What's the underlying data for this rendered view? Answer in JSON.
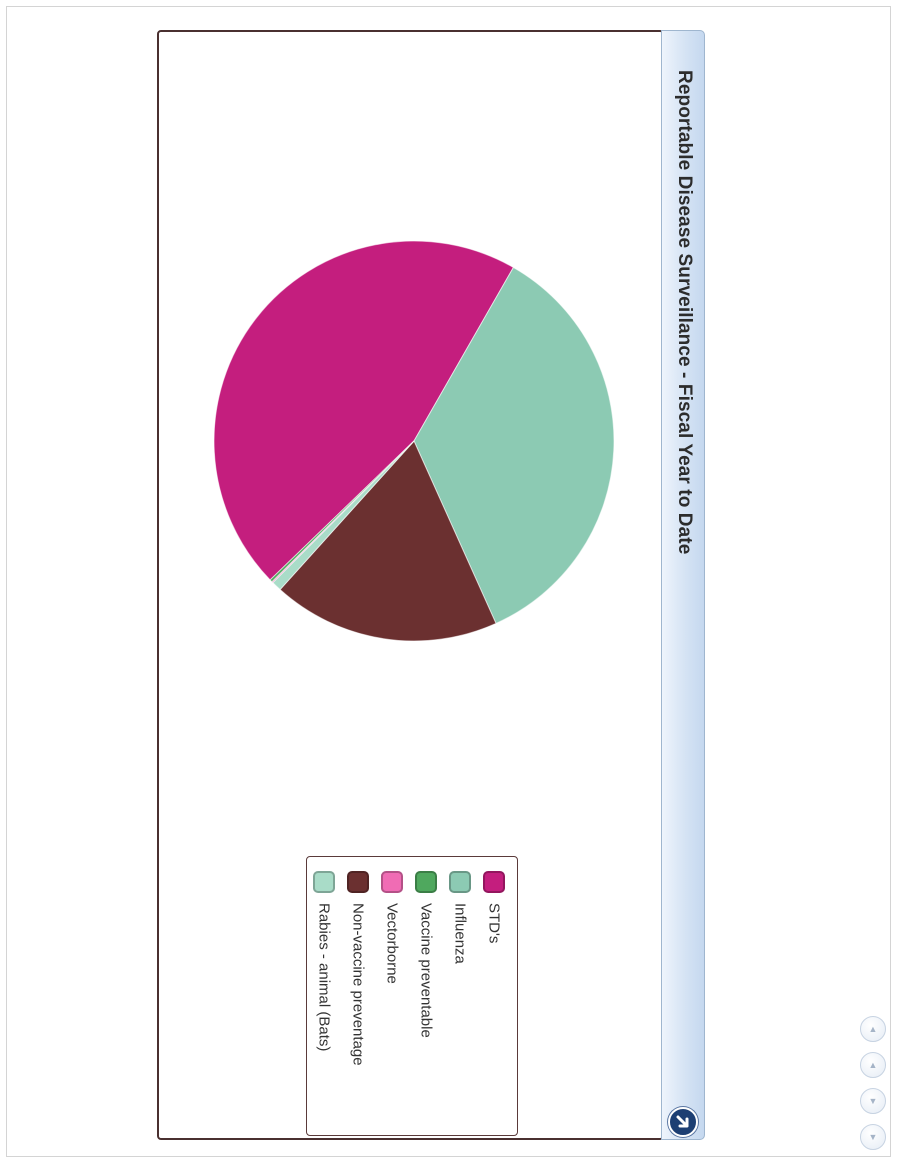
{
  "chart_data": {
    "type": "pie",
    "title": "Reportable Disease Surveillance - Fiscal Year to Date",
    "slices": [
      {
        "label": "STD's",
        "value": 45.5,
        "color": "#c41e7e"
      },
      {
        "label": "Influenza",
        "value": 35.0,
        "color": "#8ccab3"
      },
      {
        "label": "Vaccine preventable",
        "value": 0.2,
        "color": "#4fa85e"
      },
      {
        "label": "Vectorborne",
        "value": 0.1,
        "color": "#f06cb4"
      },
      {
        "label": "Non-vaccine preventage",
        "value": 18.4,
        "color": "#6b3030"
      },
      {
        "label": "Rabies - animal (Bats)",
        "value": 0.8,
        "color": "#a9dcc8"
      }
    ],
    "legend_position": "right"
  },
  "icons": {
    "corner": "maximize-arrow-icon",
    "nav": [
      "first-page-icon",
      "previous-page-icon",
      "next-page-icon",
      "last-page-icon"
    ]
  }
}
